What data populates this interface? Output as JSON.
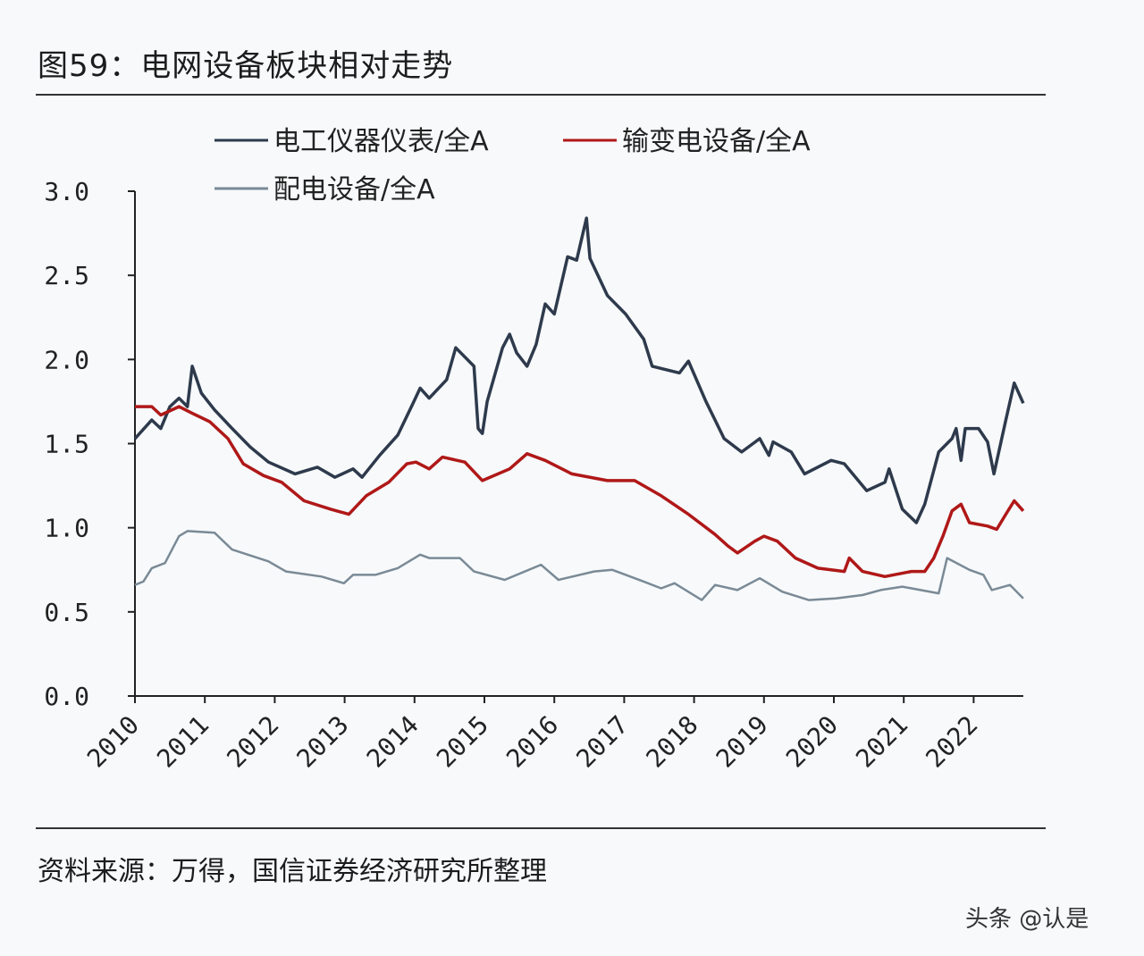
{
  "title": "图59：电网设备板块相对走势",
  "source": "资料来源：万得，国信证券经济研究所整理",
  "watermark": "头条 @认是",
  "chart_data": {
    "type": "line",
    "title": "图59：电网设备板块相对走势",
    "xlabel": "",
    "ylabel": "",
    "ylim": [
      0,
      3.0
    ],
    "xlim": [
      2010,
      2022.71
    ],
    "yticks": [
      "0.0",
      "0.5",
      "1.0",
      "1.5",
      "2.0",
      "2.5",
      "3.0"
    ],
    "xticks": [
      "2010",
      "2011",
      "2012",
      "2013",
      "2014",
      "2015",
      "2016",
      "2017",
      "2018",
      "2019",
      "2020",
      "2021",
      "2022"
    ],
    "grid": false,
    "legend": "top",
    "series": [
      {
        "name": "电工仪器仪表/全A",
        "color": "#2e3a4c",
        "points": [
          [
            2010.0,
            1.53
          ],
          [
            2010.24,
            1.64
          ],
          [
            2010.37,
            1.59
          ],
          [
            2010.5,
            1.72
          ],
          [
            2010.63,
            1.77
          ],
          [
            2010.75,
            1.72
          ],
          [
            2010.82,
            1.96
          ],
          [
            2010.95,
            1.8
          ],
          [
            2011.14,
            1.7
          ],
          [
            2011.39,
            1.59
          ],
          [
            2011.65,
            1.48
          ],
          [
            2011.91,
            1.39
          ],
          [
            2012.29,
            1.32
          ],
          [
            2012.61,
            1.36
          ],
          [
            2012.86,
            1.3
          ],
          [
            2013.12,
            1.35
          ],
          [
            2013.25,
            1.3
          ],
          [
            2013.5,
            1.43
          ],
          [
            2013.76,
            1.55
          ],
          [
            2013.98,
            1.74
          ],
          [
            2014.08,
            1.83
          ],
          [
            2014.21,
            1.77
          ],
          [
            2014.46,
            1.88
          ],
          [
            2014.59,
            2.07
          ],
          [
            2014.85,
            1.96
          ],
          [
            2014.91,
            1.59
          ],
          [
            2014.97,
            1.56
          ],
          [
            2015.04,
            1.75
          ],
          [
            2015.26,
            2.07
          ],
          [
            2015.36,
            2.15
          ],
          [
            2015.46,
            2.04
          ],
          [
            2015.61,
            1.96
          ],
          [
            2015.74,
            2.09
          ],
          [
            2015.87,
            2.33
          ],
          [
            2016.0,
            2.27
          ],
          [
            2016.19,
            2.61
          ],
          [
            2016.32,
            2.59
          ],
          [
            2016.46,
            2.84
          ],
          [
            2016.51,
            2.6
          ],
          [
            2016.76,
            2.38
          ],
          [
            2017.02,
            2.27
          ],
          [
            2017.28,
            2.12
          ],
          [
            2017.4,
            1.96
          ],
          [
            2017.79,
            1.92
          ],
          [
            2017.92,
            1.99
          ],
          [
            2018.17,
            1.75
          ],
          [
            2018.43,
            1.53
          ],
          [
            2018.68,
            1.45
          ],
          [
            2018.94,
            1.53
          ],
          [
            2019.07,
            1.43
          ],
          [
            2019.13,
            1.51
          ],
          [
            2019.39,
            1.45
          ],
          [
            2019.58,
            1.32
          ],
          [
            2019.96,
            1.4
          ],
          [
            2020.15,
            1.38
          ],
          [
            2020.47,
            1.22
          ],
          [
            2020.73,
            1.27
          ],
          [
            2020.79,
            1.35
          ],
          [
            2020.98,
            1.11
          ],
          [
            2021.18,
            1.03
          ],
          [
            2021.3,
            1.14
          ],
          [
            2021.5,
            1.45
          ],
          [
            2021.69,
            1.53
          ],
          [
            2021.75,
            1.59
          ],
          [
            2021.82,
            1.4
          ],
          [
            2021.88,
            1.59
          ],
          [
            2022.07,
            1.59
          ],
          [
            2022.2,
            1.51
          ],
          [
            2022.29,
            1.32
          ],
          [
            2022.46,
            1.64
          ],
          [
            2022.58,
            1.86
          ],
          [
            2022.71,
            1.74
          ]
        ]
      },
      {
        "name": "输变电设备/全A",
        "color": "#b01818",
        "points": [
          [
            2010.0,
            1.72
          ],
          [
            2010.24,
            1.72
          ],
          [
            2010.37,
            1.67
          ],
          [
            2010.63,
            1.72
          ],
          [
            2010.82,
            1.68
          ],
          [
            2011.07,
            1.63
          ],
          [
            2011.33,
            1.53
          ],
          [
            2011.55,
            1.38
          ],
          [
            2011.84,
            1.31
          ],
          [
            2012.1,
            1.27
          ],
          [
            2012.42,
            1.16
          ],
          [
            2012.8,
            1.11
          ],
          [
            2013.06,
            1.08
          ],
          [
            2013.31,
            1.19
          ],
          [
            2013.63,
            1.27
          ],
          [
            2013.89,
            1.38
          ],
          [
            2014.02,
            1.39
          ],
          [
            2014.21,
            1.35
          ],
          [
            2014.4,
            1.42
          ],
          [
            2014.72,
            1.39
          ],
          [
            2014.97,
            1.28
          ],
          [
            2015.36,
            1.35
          ],
          [
            2015.61,
            1.44
          ],
          [
            2015.87,
            1.4
          ],
          [
            2016.25,
            1.32
          ],
          [
            2016.76,
            1.28
          ],
          [
            2017.15,
            1.28
          ],
          [
            2017.53,
            1.19
          ],
          [
            2017.92,
            1.08
          ],
          [
            2018.3,
            0.96
          ],
          [
            2018.49,
            0.89
          ],
          [
            2018.62,
            0.85
          ],
          [
            2018.87,
            0.92
          ],
          [
            2019.0,
            0.95
          ],
          [
            2019.19,
            0.92
          ],
          [
            2019.45,
            0.82
          ],
          [
            2019.77,
            0.76
          ],
          [
            2020.15,
            0.74
          ],
          [
            2020.22,
            0.82
          ],
          [
            2020.41,
            0.74
          ],
          [
            2020.73,
            0.71
          ],
          [
            2021.11,
            0.74
          ],
          [
            2021.3,
            0.74
          ],
          [
            2021.43,
            0.82
          ],
          [
            2021.56,
            0.95
          ],
          [
            2021.69,
            1.1
          ],
          [
            2021.82,
            1.14
          ],
          [
            2021.94,
            1.03
          ],
          [
            2022.2,
            1.01
          ],
          [
            2022.33,
            0.99
          ],
          [
            2022.46,
            1.08
          ],
          [
            2022.58,
            1.16
          ],
          [
            2022.71,
            1.1
          ]
        ]
      },
      {
        "name": "配电设备/全A",
        "color": "#7a8a96",
        "points": [
          [
            2010.0,
            0.66
          ],
          [
            2010.12,
            0.68
          ],
          [
            2010.24,
            0.76
          ],
          [
            2010.43,
            0.79
          ],
          [
            2010.63,
            0.95
          ],
          [
            2010.75,
            0.98
          ],
          [
            2011.14,
            0.97
          ],
          [
            2011.39,
            0.87
          ],
          [
            2011.91,
            0.8
          ],
          [
            2012.16,
            0.74
          ],
          [
            2012.67,
            0.71
          ],
          [
            2012.99,
            0.67
          ],
          [
            2013.12,
            0.72
          ],
          [
            2013.44,
            0.72
          ],
          [
            2013.76,
            0.76
          ],
          [
            2014.08,
            0.84
          ],
          [
            2014.21,
            0.82
          ],
          [
            2014.65,
            0.82
          ],
          [
            2014.85,
            0.74
          ],
          [
            2015.29,
            0.69
          ],
          [
            2015.81,
            0.78
          ],
          [
            2016.06,
            0.69
          ],
          [
            2016.57,
            0.74
          ],
          [
            2016.83,
            0.75
          ],
          [
            2017.28,
            0.68
          ],
          [
            2017.53,
            0.64
          ],
          [
            2017.72,
            0.67
          ],
          [
            2018.11,
            0.57
          ],
          [
            2018.3,
            0.66
          ],
          [
            2018.62,
            0.63
          ],
          [
            2018.94,
            0.7
          ],
          [
            2019.26,
            0.62
          ],
          [
            2019.64,
            0.57
          ],
          [
            2020.03,
            0.58
          ],
          [
            2020.41,
            0.6
          ],
          [
            2020.67,
            0.63
          ],
          [
            2020.98,
            0.65
          ],
          [
            2021.24,
            0.63
          ],
          [
            2021.5,
            0.61
          ],
          [
            2021.62,
            0.82
          ],
          [
            2021.94,
            0.75
          ],
          [
            2022.14,
            0.72
          ],
          [
            2022.26,
            0.63
          ],
          [
            2022.52,
            0.66
          ],
          [
            2022.71,
            0.58
          ]
        ]
      }
    ]
  }
}
